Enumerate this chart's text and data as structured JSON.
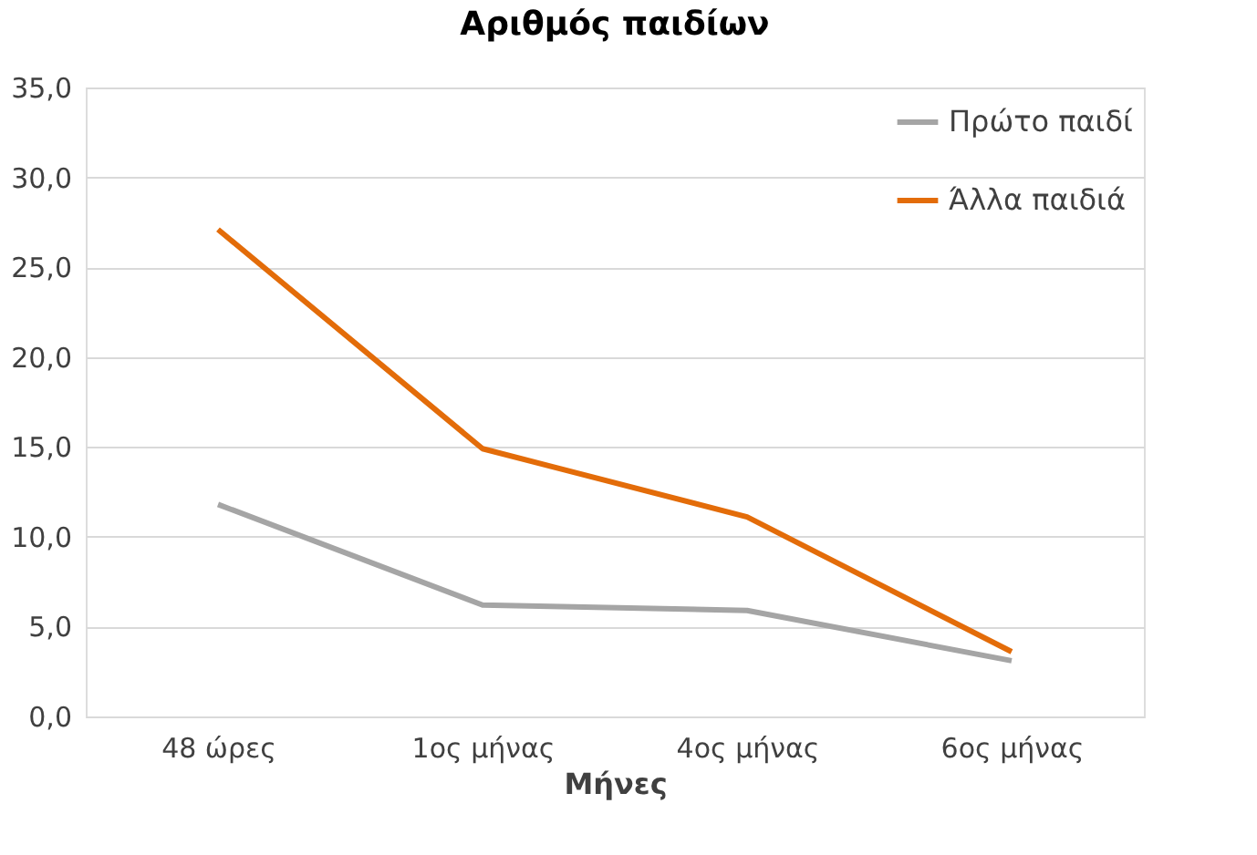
{
  "chart_data": {
    "type": "line",
    "title": "Αριθμός παιδίων",
    "xlabel": "Μήνες",
    "categories": [
      "48 ώρες",
      "1ος μήνας",
      "4ος μήνας",
      "6ος μήνας"
    ],
    "series": [
      {
        "name": "Πρώτο παιδί",
        "color": "#a5a5a5",
        "values": [
          11.8,
          6.2,
          5.9,
          3.1
        ]
      },
      {
        "name": "Άλλα παιδιά",
        "color": "#e36c09",
        "values": [
          27.1,
          14.9,
          11.1,
          3.6
        ]
      }
    ],
    "ylim": [
      0,
      35
    ],
    "yticks": [
      {
        "value": 0,
        "label": "0,0"
      },
      {
        "value": 5,
        "label": "5,0"
      },
      {
        "value": 10,
        "label": "10,0"
      },
      {
        "value": 15,
        "label": "15,0"
      },
      {
        "value": 20,
        "label": "20,0"
      },
      {
        "value": 25,
        "label": "25,0"
      },
      {
        "value": 30,
        "label": "30,0"
      },
      {
        "value": 35,
        "label": "35,0"
      }
    ],
    "grid": "y",
    "legend": "top right",
    "marker": "none",
    "line_style": "solid"
  }
}
